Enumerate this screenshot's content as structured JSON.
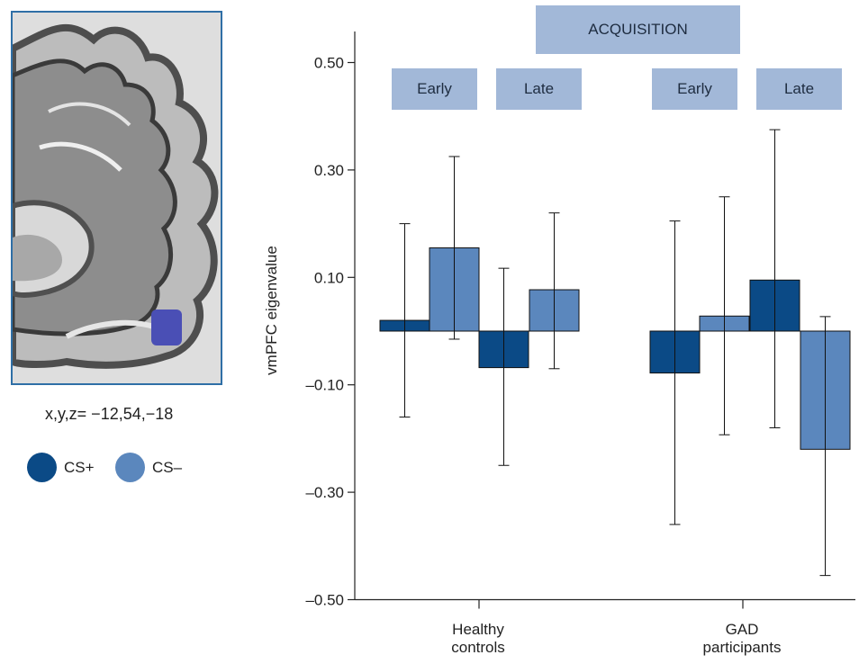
{
  "figure": {
    "coordinate_label": "x,y,z= −12,54,−18",
    "legend": [
      {
        "label": "CS+",
        "color": "#0b4a86"
      },
      {
        "label": "CS–",
        "color": "#5b87bd"
      }
    ],
    "brain_panel": {
      "label": "",
      "roi_color": "#4a4fb5",
      "panel_border": "#2f6fa6"
    }
  },
  "chart_data": {
    "type": "bar",
    "title": "",
    "header": "ACQUISITION",
    "phase_labels": [
      "Early",
      "Late",
      "Early",
      "Late"
    ],
    "ylabel": "vmPFC eigenvalue",
    "ylim": [
      -0.5,
      0.55
    ],
    "yticks": [
      "0.50",
      "0.30",
      "0.10",
      "–0.10",
      "–0.30",
      "–0.50"
    ],
    "ytick_values": [
      0.5,
      0.3,
      0.1,
      -0.1,
      -0.3,
      -0.5
    ],
    "categories": [
      "Healthy controls",
      "GAD participants"
    ],
    "category_lines": [
      [
        "Healthy",
        "controls"
      ],
      [
        "GAD",
        "participants"
      ]
    ],
    "colors": {
      "CS+": "#0b4a86",
      "CS–": "#5b87bd"
    },
    "bars": [
      {
        "group": "Healthy controls",
        "phase": "Early",
        "cond": "CS+",
        "value": 0.02,
        "err_low": -0.16,
        "err_high": 0.2
      },
      {
        "group": "Healthy controls",
        "phase": "Early",
        "cond": "CS–",
        "value": 0.155,
        "err_low": -0.015,
        "err_high": 0.325
      },
      {
        "group": "Healthy controls",
        "phase": "Late",
        "cond": "CS+",
        "value": -0.068,
        "err_low": -0.25,
        "err_high": 0.117
      },
      {
        "group": "Healthy controls",
        "phase": "Late",
        "cond": "CS–",
        "value": 0.077,
        "err_low": -0.07,
        "err_high": 0.22
      },
      {
        "group": "GAD participants",
        "phase": "Early",
        "cond": "CS+",
        "value": -0.078,
        "err_low": -0.36,
        "err_high": 0.205
      },
      {
        "group": "GAD participants",
        "phase": "Early",
        "cond": "CS–",
        "value": 0.028,
        "err_low": -0.193,
        "err_high": 0.25
      },
      {
        "group": "GAD participants",
        "phase": "Late",
        "cond": "CS+",
        "value": 0.095,
        "err_low": -0.18,
        "err_high": 0.375
      },
      {
        "group": "GAD participants",
        "phase": "Late",
        "cond": "CS–",
        "value": -0.22,
        "err_low": -0.455,
        "err_high": 0.027
      }
    ],
    "grid": false,
    "legend_position": "left"
  }
}
